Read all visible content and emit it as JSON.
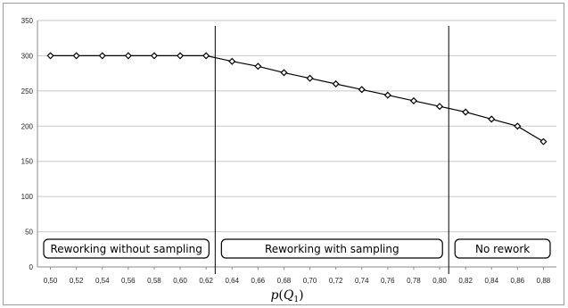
{
  "chart_data": {
    "type": "line",
    "title": "",
    "xlabel": "p(Q1)",
    "xlabel_parts": {
      "p": "p",
      "open": "(",
      "var": "Q",
      "sub": "1",
      "close": ")"
    },
    "ylabel": "",
    "ylim": [
      0,
      350
    ],
    "yticks": [
      0,
      50,
      100,
      150,
      200,
      250,
      300,
      350
    ],
    "grid": true,
    "legend": "none",
    "x": [
      "0,50",
      "0,52",
      "0,54",
      "0,56",
      "0,58",
      "0,60",
      "0,62",
      "0,64",
      "0,66",
      "0,68",
      "0,70",
      "0,72",
      "0,74",
      "0,76",
      "0,78",
      "0,80",
      "0,82",
      "0,84",
      "0,86",
      "0,88"
    ],
    "x_values": [
      0.5,
      0.52,
      0.54,
      0.56,
      0.58,
      0.6,
      0.62,
      0.64,
      0.66,
      0.68,
      0.7,
      0.72,
      0.74,
      0.76,
      0.78,
      0.8,
      0.82,
      0.84,
      0.86,
      0.88
    ],
    "series": [
      {
        "values": [
          300,
          300,
          300,
          300,
          300,
          300,
          300,
          292,
          285,
          276,
          268,
          260,
          252,
          244,
          236,
          228,
          220,
          210,
          200,
          178
        ]
      }
    ],
    "region_boundaries": [
      0.627,
      0.807
    ],
    "regions": [
      {
        "label": "Reworking without sampling",
        "from": 0.49,
        "to": 0.627
      },
      {
        "label": "Reworking with sampling",
        "from": 0.627,
        "to": 0.807
      },
      {
        "label": "No rework",
        "from": 0.807,
        "to": 0.89
      }
    ],
    "colors": {
      "line": "#000000",
      "grid": "#c8c8c8",
      "marker_fill": "#ffffff"
    }
  }
}
